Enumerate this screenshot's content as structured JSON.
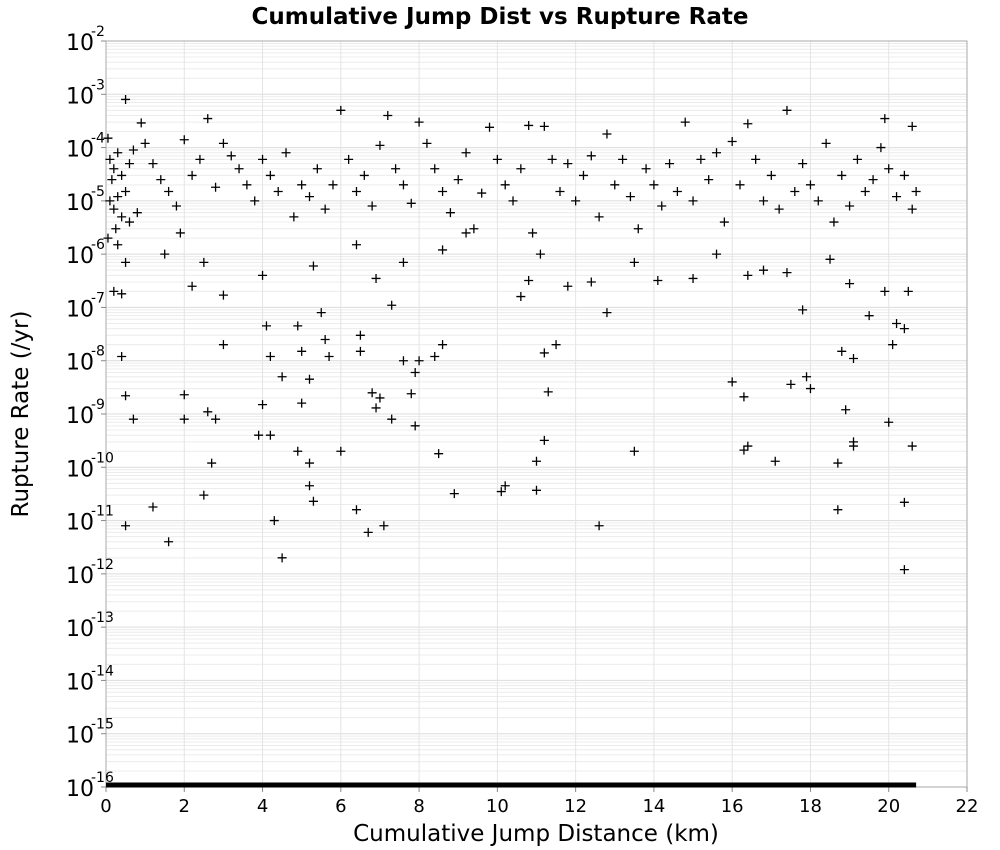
{
  "chart_data": {
    "type": "scatter",
    "title": "Cumulative Jump Dist vs Rupture Rate",
    "xlabel": "Cumulative Jump Distance (km)",
    "ylabel": "Rupture Rate (/yr)",
    "x_range": [
      0,
      22
    ],
    "y_range": [
      1e-16,
      0.01
    ],
    "y_scale": "log",
    "x_ticks": [
      "0",
      "2",
      "4",
      "6",
      "8",
      "10",
      "12",
      "14",
      "16",
      "18",
      "20",
      "22"
    ],
    "y_ticks": [
      {
        "base": "10",
        "exp": "-2"
      },
      {
        "base": "10",
        "exp": "-3"
      },
      {
        "base": "10",
        "exp": "-4"
      },
      {
        "base": "10",
        "exp": "-5"
      },
      {
        "base": "10",
        "exp": "-6"
      },
      {
        "base": "10",
        "exp": "-7"
      },
      {
        "base": "10",
        "exp": "-8"
      },
      {
        "base": "10",
        "exp": "-9"
      },
      {
        "base": "10",
        "exp": "-10"
      },
      {
        "base": "10",
        "exp": "-11"
      },
      {
        "base": "10",
        "exp": "-12"
      },
      {
        "base": "10",
        "exp": "-13"
      },
      {
        "base": "10",
        "exp": "-14"
      },
      {
        "base": "10",
        "exp": "-15"
      },
      {
        "base": "10",
        "exp": "-16"
      }
    ],
    "grid": true,
    "marker": "+",
    "marker_color": "#000000",
    "floor_series": {
      "y": 1e-16,
      "x_from": 0,
      "x_to": 20.7
    },
    "points": [
      [
        0.5,
        0.0008
      ],
      [
        6.0,
        0.0005
      ],
      [
        7.2,
        0.0004
      ],
      [
        17.4,
        0.0005
      ],
      [
        14.8,
        0.0003
      ],
      [
        2.6,
        0.00035
      ],
      [
        16.4,
        0.00028
      ],
      [
        19.9,
        0.00035
      ],
      [
        20.6,
        0.00025
      ],
      [
        8.0,
        0.0003
      ],
      [
        10.8,
        0.00026
      ],
      [
        11.2,
        0.00025
      ],
      [
        0.9,
        0.00029
      ],
      [
        0.3,
        8e-05
      ],
      [
        0.1,
        6e-05
      ],
      [
        0.2,
        4e-05
      ],
      [
        0.4,
        3e-05
      ],
      [
        0.05,
        0.00015
      ],
      [
        0.15,
        2.5e-05
      ],
      [
        0.6,
        5e-05
      ],
      [
        0.7,
        9e-05
      ],
      [
        0.3,
        1.2e-05
      ],
      [
        0.5,
        1.5e-05
      ],
      [
        0.1,
        1e-05
      ],
      [
        0.2,
        7e-06
      ],
      [
        0.4,
        5e-06
      ],
      [
        0.25,
        3e-06
      ],
      [
        0.6,
        4e-06
      ],
      [
        0.8,
        6e-06
      ],
      [
        0.05,
        2e-06
      ],
      [
        1.0,
        0.00012
      ],
      [
        1.2,
        5e-05
      ],
      [
        1.4,
        2.5e-05
      ],
      [
        1.6,
        1.5e-05
      ],
      [
        1.8,
        8e-06
      ],
      [
        2.0,
        0.00014
      ],
      [
        2.2,
        3e-05
      ],
      [
        2.4,
        6e-05
      ],
      [
        2.8,
        1.8e-05
      ],
      [
        3.0,
        0.00012
      ],
      [
        3.2,
        7e-05
      ],
      [
        3.4,
        4e-05
      ],
      [
        3.6,
        2e-05
      ],
      [
        3.8,
        1e-05
      ],
      [
        4.0,
        6e-05
      ],
      [
        4.2,
        3e-05
      ],
      [
        4.4,
        1.5e-05
      ],
      [
        4.6,
        8e-05
      ],
      [
        4.8,
        5e-06
      ],
      [
        5.0,
        2e-05
      ],
      [
        5.2,
        1.2e-05
      ],
      [
        5.4,
        4e-05
      ],
      [
        5.6,
        7e-06
      ],
      [
        5.8,
        2e-05
      ],
      [
        6.2,
        6e-05
      ],
      [
        6.4,
        1.5e-05
      ],
      [
        6.6,
        3e-05
      ],
      [
        6.8,
        8e-06
      ],
      [
        7.0,
        0.00011
      ],
      [
        7.4,
        4e-05
      ],
      [
        7.6,
        2e-05
      ],
      [
        7.8,
        9e-06
      ],
      [
        8.2,
        0.00012
      ],
      [
        8.4,
        4e-05
      ],
      [
        8.6,
        1.5e-05
      ],
      [
        8.8,
        6e-06
      ],
      [
        9.0,
        2.5e-05
      ],
      [
        9.2,
        8e-05
      ],
      [
        9.4,
        3e-06
      ],
      [
        9.6,
        1.4e-05
      ],
      [
        9.8,
        0.00024
      ],
      [
        10.0,
        6e-05
      ],
      [
        10.2,
        2e-05
      ],
      [
        10.4,
        1e-05
      ],
      [
        10.6,
        4e-05
      ],
      [
        10.9,
        2.5e-06
      ],
      [
        11.4,
        6e-05
      ],
      [
        11.6,
        1.5e-05
      ],
      [
        11.8,
        5e-05
      ],
      [
        12.0,
        1e-05
      ],
      [
        12.2,
        3e-05
      ],
      [
        12.4,
        7e-05
      ],
      [
        12.6,
        5e-06
      ],
      [
        12.8,
        0.00018
      ],
      [
        13.0,
        2e-05
      ],
      [
        13.2,
        6e-05
      ],
      [
        13.4,
        1.2e-05
      ],
      [
        13.6,
        3e-06
      ],
      [
        13.8,
        4e-05
      ],
      [
        14.0,
        2e-05
      ],
      [
        14.2,
        8e-06
      ],
      [
        14.4,
        5e-05
      ],
      [
        14.6,
        1.5e-05
      ],
      [
        15.0,
        1e-05
      ],
      [
        15.2,
        6e-05
      ],
      [
        15.4,
        2.5e-05
      ],
      [
        15.6,
        8e-05
      ],
      [
        15.8,
        4e-06
      ],
      [
        16.0,
        0.00013
      ],
      [
        16.2,
        2e-05
      ],
      [
        16.6,
        6e-05
      ],
      [
        16.8,
        1e-05
      ],
      [
        17.0,
        3e-05
      ],
      [
        17.2,
        7e-06
      ],
      [
        17.6,
        1.5e-05
      ],
      [
        17.8,
        5e-05
      ],
      [
        18.0,
        2e-05
      ],
      [
        18.2,
        1e-05
      ],
      [
        18.4,
        0.00012
      ],
      [
        18.6,
        4e-06
      ],
      [
        18.8,
        3e-05
      ],
      [
        19.0,
        8e-06
      ],
      [
        19.2,
        6e-05
      ],
      [
        19.4,
        1.5e-05
      ],
      [
        19.6,
        2.5e-05
      ],
      [
        19.8,
        0.0001
      ],
      [
        20.0,
        4e-05
      ],
      [
        20.2,
        1.2e-05
      ],
      [
        20.4,
        3e-05
      ],
      [
        20.6,
        7e-06
      ],
      [
        20.7,
        1.5e-05
      ],
      [
        0.3,
        1.5e-06
      ],
      [
        0.5,
        7e-07
      ],
      [
        0.2,
        2e-07
      ],
      [
        0.4,
        1.8e-07
      ],
      [
        1.5,
        1e-06
      ],
      [
        1.9,
        2.5e-06
      ],
      [
        2.2,
        2.5e-07
      ],
      [
        2.5,
        7e-07
      ],
      [
        3.0,
        1.7e-07
      ],
      [
        4.0,
        4e-07
      ],
      [
        5.3,
        6e-07
      ],
      [
        5.5,
        8e-08
      ],
      [
        6.4,
        1.5e-06
      ],
      [
        6.9,
        3.5e-07
      ],
      [
        7.3,
        1.1e-07
      ],
      [
        7.6,
        7e-07
      ],
      [
        8.6,
        1.2e-06
      ],
      [
        9.2,
        2.5e-06
      ],
      [
        10.6,
        1.6e-07
      ],
      [
        10.8,
        3.2e-07
      ],
      [
        11.1,
        1e-06
      ],
      [
        11.8,
        2.5e-07
      ],
      [
        12.4,
        3e-07
      ],
      [
        12.8,
        8e-08
      ],
      [
        13.5,
        7e-07
      ],
      [
        14.1,
        3.2e-07
      ],
      [
        15.0,
        3.5e-07
      ],
      [
        15.6,
        1e-06
      ],
      [
        16.4,
        4e-07
      ],
      [
        16.8,
        5e-07
      ],
      [
        17.4,
        4.5e-07
      ],
      [
        17.8,
        9e-08
      ],
      [
        18.5,
        8e-07
      ],
      [
        19.0,
        2.8e-07
      ],
      [
        19.5,
        7e-08
      ],
      [
        19.9,
        2e-07
      ],
      [
        20.2,
        5e-08
      ],
      [
        20.4,
        4e-08
      ],
      [
        20.5,
        2e-07
      ],
      [
        0.4,
        1.2e-08
      ],
      [
        0.5,
        2.2e-09
      ],
      [
        0.7,
        8e-10
      ],
      [
        2.0,
        8e-10
      ],
      [
        2.0,
        2.3e-09
      ],
      [
        2.6,
        1.1e-09
      ],
      [
        2.8,
        8e-10
      ],
      [
        3.0,
        2e-08
      ],
      [
        3.9,
        4e-10
      ],
      [
        4.0,
        1.5e-09
      ],
      [
        4.2,
        4e-10
      ],
      [
        4.1,
        4.5e-08
      ],
      [
        4.2,
        1.2e-08
      ],
      [
        4.5,
        5e-09
      ],
      [
        4.9,
        4.5e-08
      ],
      [
        5.0,
        1.5e-08
      ],
      [
        5.0,
        1.6e-09
      ],
      [
        5.2,
        4.5e-09
      ],
      [
        5.6,
        2.5e-08
      ],
      [
        5.7,
        1.2e-08
      ],
      [
        6.0,
        2e-10
      ],
      [
        6.5,
        3e-08
      ],
      [
        6.5,
        1.5e-08
      ],
      [
        6.8,
        2.5e-09
      ],
      [
        6.9,
        1.3e-09
      ],
      [
        7.0,
        2e-09
      ],
      [
        7.3,
        8e-10
      ],
      [
        7.6,
        1e-08
      ],
      [
        7.8,
        2.4e-09
      ],
      [
        7.9,
        6e-09
      ],
      [
        8.0,
        1e-08
      ],
      [
        7.9,
        6e-10
      ],
      [
        8.4,
        1.2e-08
      ],
      [
        8.6,
        2e-08
      ],
      [
        11.2,
        1.4e-08
      ],
      [
        11.5,
        2e-08
      ],
      [
        11.3,
        2.6e-09
      ],
      [
        16.0,
        4e-09
      ],
      [
        16.3,
        2.1e-09
      ],
      [
        17.5,
        3.6e-09
      ],
      [
        17.9,
        5e-09
      ],
      [
        18.0,
        3e-09
      ],
      [
        18.8,
        1.5e-08
      ],
      [
        18.9,
        1.2e-09
      ],
      [
        19.1,
        1.1e-08
      ],
      [
        20.1,
        2e-08
      ],
      [
        20.0,
        7e-10
      ],
      [
        2.7,
        1.2e-10
      ],
      [
        4.9,
        2e-10
      ],
      [
        5.2,
        1.2e-10
      ],
      [
        8.5,
        1.8e-10
      ],
      [
        11.0,
        1.3e-10
      ],
      [
        11.2,
        3.2e-10
      ],
      [
        13.5,
        2e-10
      ],
      [
        16.3,
        2.1e-10
      ],
      [
        16.4,
        2.5e-10
      ],
      [
        17.1,
        1.3e-10
      ],
      [
        18.7,
        1.2e-10
      ],
      [
        19.1,
        2.5e-10
      ],
      [
        19.1,
        3e-10
      ],
      [
        20.6,
        2.5e-10
      ],
      [
        0.5,
        8e-12
      ],
      [
        1.2,
        1.8e-11
      ],
      [
        1.6,
        4e-12
      ],
      [
        2.5,
        3e-11
      ],
      [
        4.3,
        1e-11
      ],
      [
        4.5,
        2e-12
      ],
      [
        5.2,
        4.5e-11
      ],
      [
        5.3,
        2.3e-11
      ],
      [
        6.4,
        1.6e-11
      ],
      [
        6.7,
        6e-12
      ],
      [
        7.1,
        8e-12
      ],
      [
        8.9,
        3.2e-11
      ],
      [
        10.1,
        3.5e-11
      ],
      [
        10.2,
        4.5e-11
      ],
      [
        11.0,
        3.7e-11
      ],
      [
        12.6,
        8e-12
      ],
      [
        18.7,
        1.6e-11
      ],
      [
        20.4,
        2.2e-11
      ],
      [
        20.4,
        1.2e-12
      ]
    ]
  }
}
